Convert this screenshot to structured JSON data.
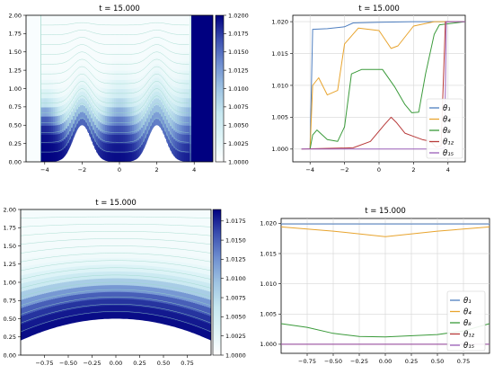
{
  "figure": {
    "cbar_colors": [
      "#ffffff",
      "#dff4f7",
      "#c6e7f0",
      "#9ec3e2",
      "#6f8fd0",
      "#3b4fb0",
      "#000080"
    ]
  },
  "chart_data": [
    {
      "type": "heatmap",
      "title": "t = 15.000",
      "xlabel": "",
      "ylabel": "",
      "xlim": [
        -5,
        5
      ],
      "ylim": [
        0,
        2.0
      ],
      "xticks": [
        -4,
        -2,
        0,
        2,
        4
      ],
      "yticks": [
        "0.00",
        "0.25",
        "0.50",
        "0.75",
        "1.00",
        "1.25",
        "1.50",
        "1.75",
        "2.00"
      ],
      "bottom_boundary": "sum of two Gaussian bumps centered at x = -2 and x = 2, peak height 0.5",
      "colorbar": {
        "min": 1.0,
        "max": 1.02,
        "ticks": [
          "1.0000",
          "1.0025",
          "1.0050",
          "1.0075",
          "1.0100",
          "1.0125",
          "1.0150",
          "1.0175",
          "1.0200"
        ]
      }
    },
    {
      "type": "line",
      "title": "t = 15.000",
      "xlim": [
        -5,
        5
      ],
      "ylim": [
        0.998,
        1.021
      ],
      "xticks": [
        -4,
        -2,
        0,
        2,
        4
      ],
      "yticks": [
        "1.000",
        "1.005",
        "1.010",
        "1.015",
        "1.020"
      ],
      "legend": "lower-right",
      "grid": true,
      "series": [
        {
          "name": "θ₁",
          "color": "#4f7fc0",
          "points": [
            [
              -4.0,
              1.0
            ],
            [
              -3.85,
              1.0188
            ],
            [
              -3.0,
              1.0189
            ],
            [
              -2.0,
              1.0192
            ],
            [
              -1.5,
              1.0198
            ],
            [
              0,
              1.0199
            ],
            [
              2.0,
              1.02
            ],
            [
              5,
              1.02
            ]
          ]
        },
        {
          "name": "θ₄",
          "color": "#e8a42e",
          "points": [
            [
              -4.0,
              1.0
            ],
            [
              -3.85,
              1.01
            ],
            [
              -3.5,
              1.0112
            ],
            [
              -3.0,
              1.0085
            ],
            [
              -2.4,
              1.0092
            ],
            [
              -2.0,
              1.0165
            ],
            [
              -1.2,
              1.019
            ],
            [
              0.0,
              1.0186
            ],
            [
              0.7,
              1.0158
            ],
            [
              1.1,
              1.0162
            ],
            [
              2.0,
              1.0193
            ],
            [
              3.2,
              1.02
            ],
            [
              5,
              1.02
            ]
          ]
        },
        {
          "name": "θ₈",
          "color": "#3a9a3a",
          "points": [
            [
              -4.0,
              1.0
            ],
            [
              -3.85,
              1.0022
            ],
            [
              -3.6,
              1.003
            ],
            [
              -3.0,
              1.0015
            ],
            [
              -2.4,
              1.0012
            ],
            [
              -2.0,
              1.0035
            ],
            [
              -1.6,
              1.0118
            ],
            [
              -1.0,
              1.0125
            ],
            [
              0.2,
              1.0125
            ],
            [
              0.9,
              1.0098
            ],
            [
              1.5,
              1.007
            ],
            [
              1.9,
              1.0057
            ],
            [
              2.3,
              1.0058
            ],
            [
              2.7,
              1.0118
            ],
            [
              3.2,
              1.018
            ],
            [
              3.5,
              1.0195
            ],
            [
              5,
              1.02
            ]
          ]
        },
        {
          "name": "θ₁₂",
          "color": "#b83a3a",
          "points": [
            [
              -4.5,
              1.0
            ],
            [
              -1.5,
              1.0002
            ],
            [
              -0.5,
              1.0012
            ],
            [
              0.3,
              1.0038
            ],
            [
              0.7,
              1.005
            ],
            [
              1.0,
              1.0042
            ],
            [
              1.5,
              1.0025
            ],
            [
              2.0,
              1.002
            ],
            [
              2.5,
              1.0015
            ],
            [
              3.0,
              1.0012
            ],
            [
              3.3,
              1.0003
            ],
            [
              3.6,
              1.0005
            ],
            [
              3.85,
              1.02
            ],
            [
              5,
              1.02
            ]
          ]
        },
        {
          "name": "θ₁₅",
          "color": "#9a5fb8",
          "points": [
            [
              -4.5,
              1.0
            ],
            [
              3.5,
              1.0
            ],
            [
              3.8,
              1.0002
            ],
            [
              3.9,
              1.02
            ],
            [
              5,
              1.02
            ]
          ]
        }
      ]
    },
    {
      "type": "heatmap",
      "title": "t = 15.000",
      "xlabel": "",
      "ylabel": "",
      "xlim": [
        -1,
        1
      ],
      "ylim": [
        0,
        2.0
      ],
      "xticks": [
        "−0.75",
        "−0.50",
        "−0.25",
        "0.00",
        "0.25",
        "0.50",
        "0.75"
      ],
      "yticks": [
        "0.00",
        "0.25",
        "0.50",
        "0.75",
        "1.00",
        "1.25",
        "1.50",
        "1.75",
        "2.00"
      ],
      "bottom_boundary": "single broad bump, boundary height 0.2 at x = -1 rising to 0.5 at x = 0",
      "colorbar": {
        "min": 1.0,
        "max": 1.019,
        "ticks": [
          "1.0000",
          "1.0025",
          "1.0050",
          "1.0075",
          "1.0100",
          "1.0125",
          "1.0150",
          "1.0175"
        ]
      }
    },
    {
      "type": "line",
      "title": "t = 15.000",
      "xlim": [
        -1,
        1
      ],
      "ylim": [
        0.9985,
        1.0208
      ],
      "xticks": [
        "−0.75",
        "−0.50",
        "−0.25",
        "0.00",
        "0.25",
        "0.50",
        "0.75"
      ],
      "yticks": [
        "1.000",
        "1.005",
        "1.010",
        "1.015",
        "1.020"
      ],
      "legend": "lower-right",
      "grid": true,
      "series": [
        {
          "name": "θ₁",
          "color": "#4f7fc0",
          "points": [
            [
              -1,
              1.0199
            ],
            [
              0,
              1.0199
            ],
            [
              1,
              1.0199
            ]
          ]
        },
        {
          "name": "θ₄",
          "color": "#e8a42e",
          "points": [
            [
              -1,
              1.0194
            ],
            [
              -0.5,
              1.0187
            ],
            [
              0,
              1.0178
            ],
            [
              0.5,
              1.0187
            ],
            [
              1,
              1.0194
            ]
          ]
        },
        {
          "name": "θ₈",
          "color": "#3a9a3a",
          "points": [
            [
              -1,
              1.0034
            ],
            [
              -0.75,
              1.0028
            ],
            [
              -0.5,
              1.0018
            ],
            [
              -0.25,
              1.0013
            ],
            [
              0,
              1.0012
            ],
            [
              0.5,
              1.0016
            ],
            [
              0.75,
              1.0022
            ],
            [
              1,
              1.0034
            ]
          ]
        },
        {
          "name": "θ₁₂",
          "color": "#b83a3a",
          "points": [
            [
              -1,
              1.0
            ],
            [
              1,
              1.0
            ]
          ]
        },
        {
          "name": "θ₁₅",
          "color": "#9a5fb8",
          "points": [
            [
              -1,
              1.0
            ],
            [
              1,
              1.0
            ]
          ]
        }
      ]
    }
  ]
}
